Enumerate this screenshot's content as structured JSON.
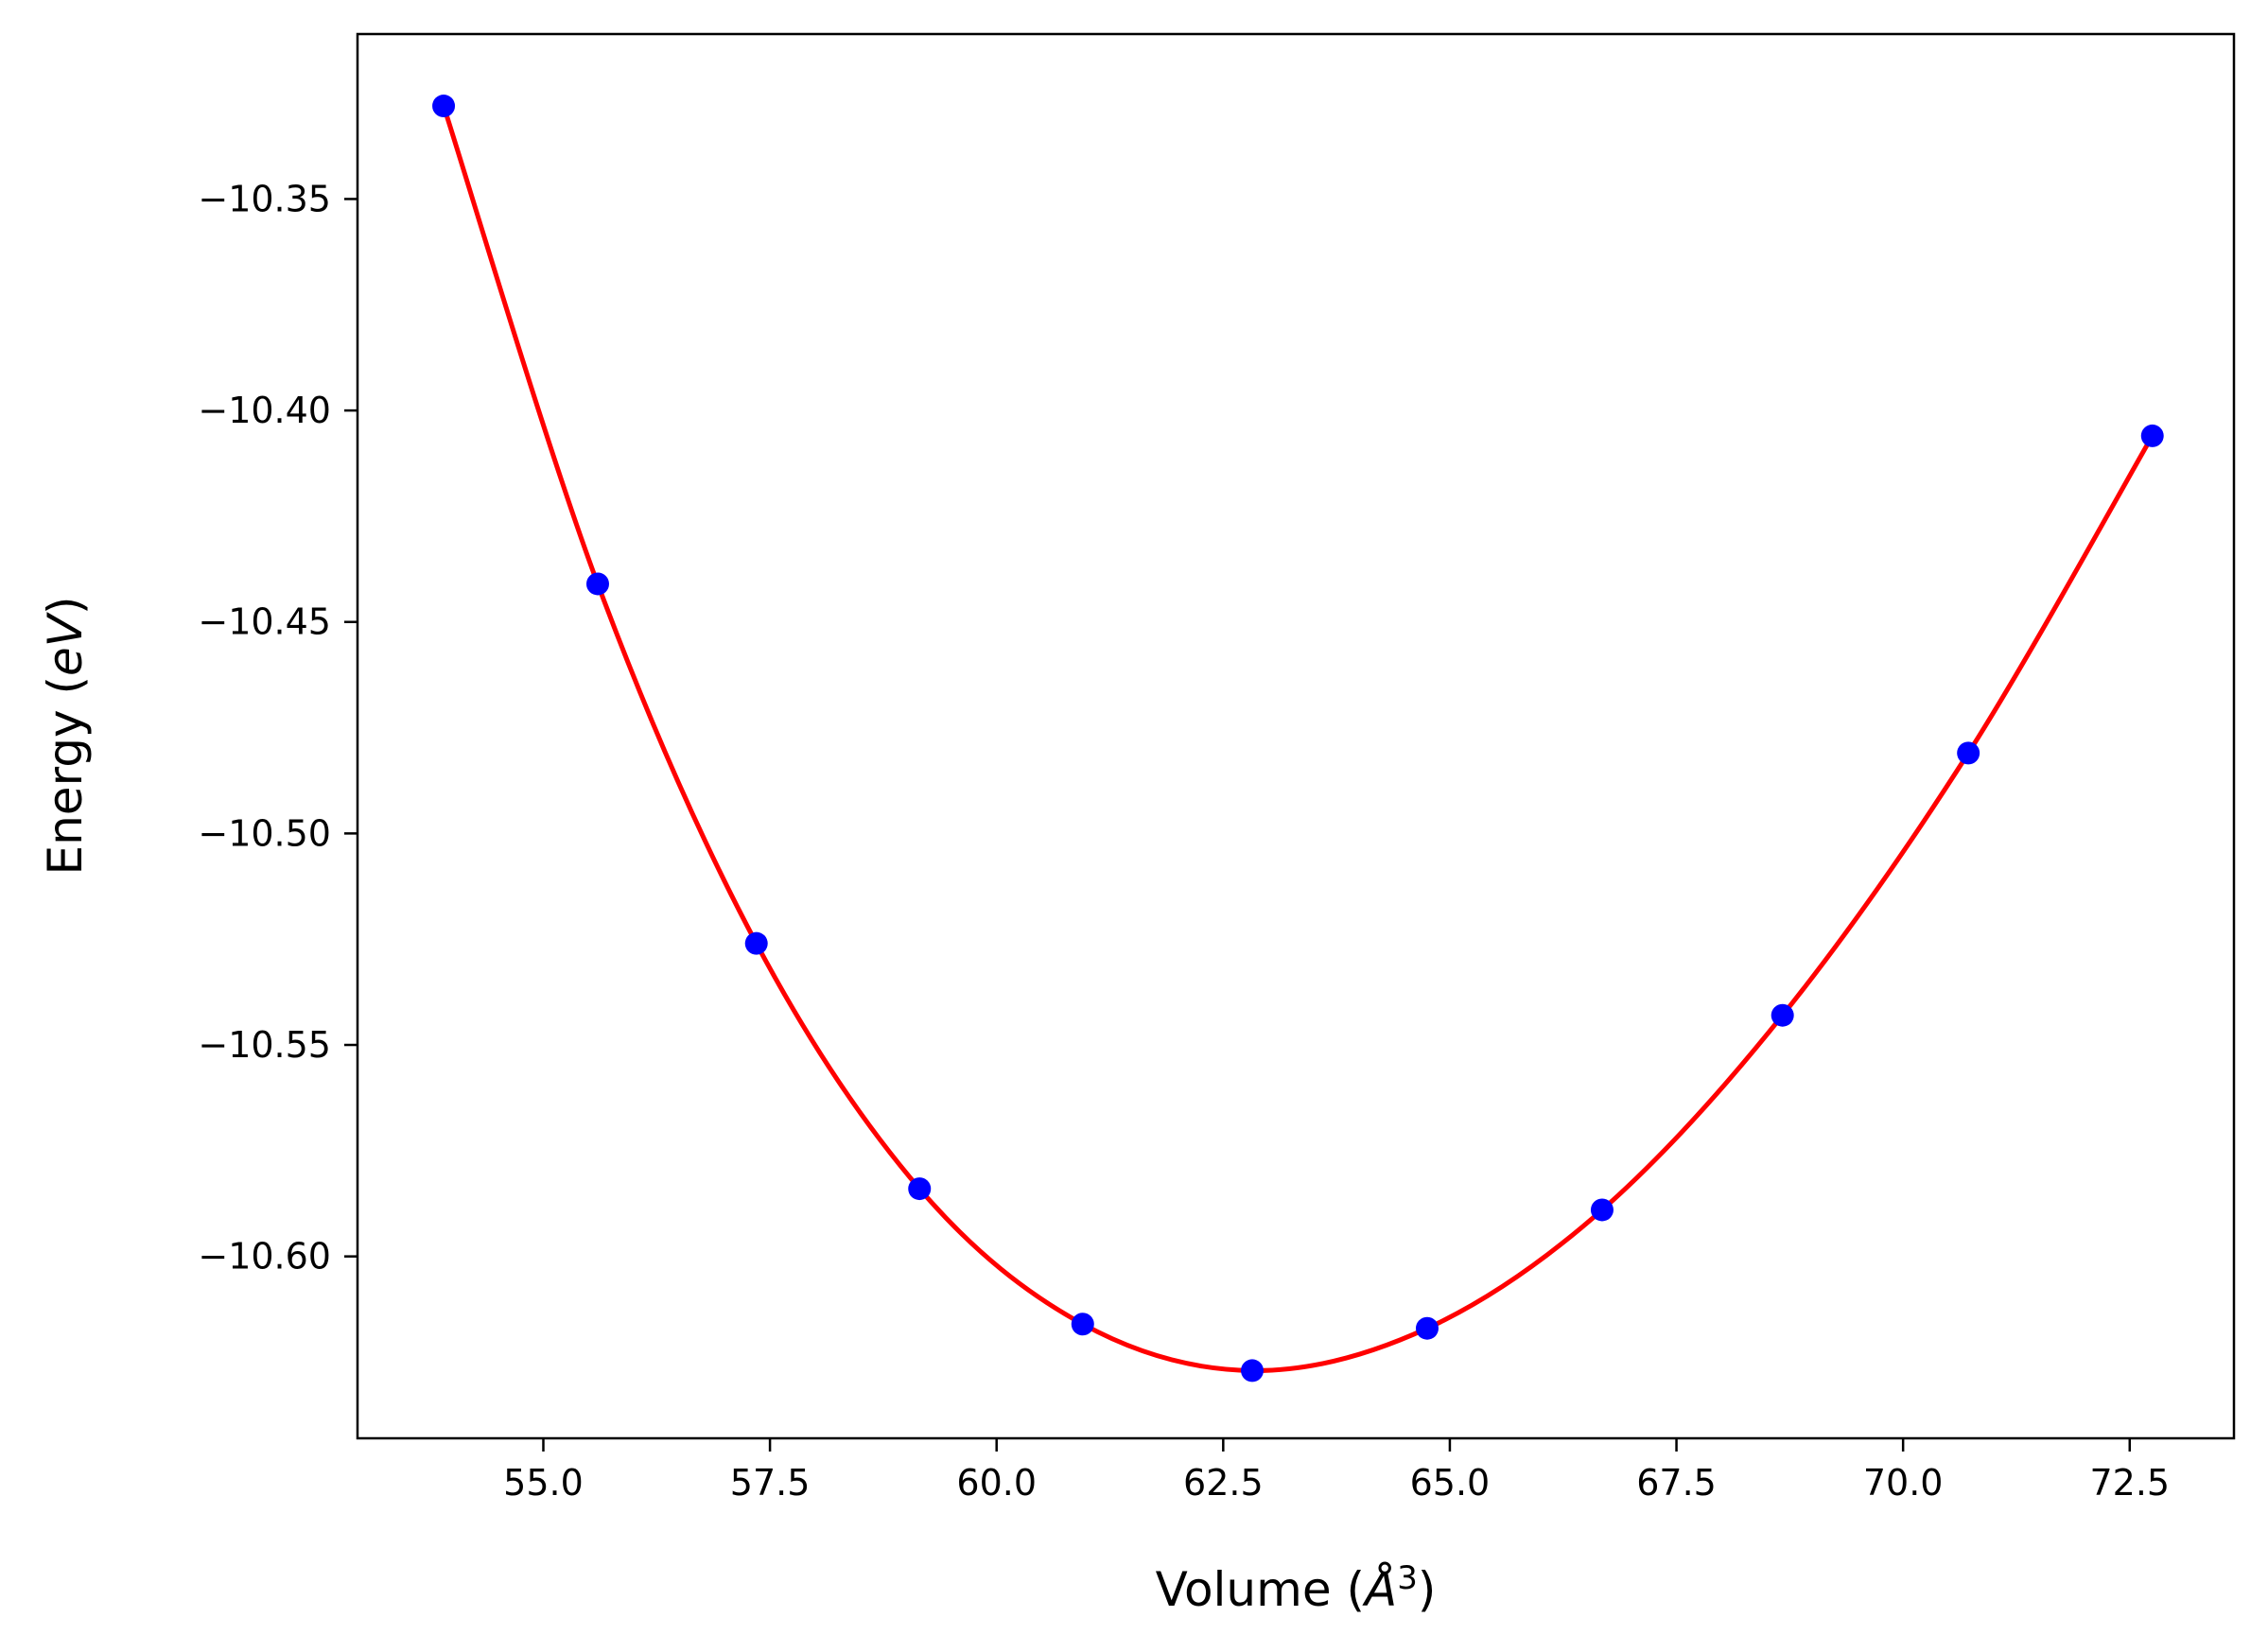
{
  "chart_data": {
    "type": "scatter",
    "title": "",
    "xlabel_prefix": "Volume (",
    "xlabel_unit": "Å",
    "xlabel_exp": "3",
    "xlabel_suffix": ")",
    "ylabel_prefix": "Energy (",
    "ylabel_unit": "eV",
    "ylabel_suffix": ")",
    "xlim": [
      52.95,
      73.65
    ],
    "ylim": [
      -10.643,
      -10.311
    ],
    "x_ticks": [
      55.0,
      57.5,
      60.0,
      62.5,
      65.0,
      67.5,
      70.0,
      72.5
    ],
    "x_tick_labels": [
      "55.0",
      "57.5",
      "60.0",
      "62.5",
      "65.0",
      "67.5",
      "70.0",
      "72.5"
    ],
    "y_ticks": [
      -10.35,
      -10.4,
      -10.45,
      -10.5,
      -10.55,
      -10.6
    ],
    "y_tick_labels": [
      "−10.35",
      "−10.40",
      "−10.45",
      "−10.50",
      "−10.55",
      "−10.60"
    ],
    "grid": false,
    "legend": "none",
    "series": [
      {
        "kind": "points",
        "color": "#0000ff",
        "x": [
          53.9,
          55.6,
          57.35,
          59.15,
          60.95,
          62.82,
          64.75,
          66.68,
          68.67,
          70.72,
          72.75
        ],
        "y": [
          -10.328,
          -10.441,
          -10.526,
          -10.584,
          -10.616,
          -10.627,
          -10.617,
          -10.589,
          -10.543,
          -10.481,
          -10.406
        ]
      },
      {
        "kind": "fit-curve",
        "color": "#ff0000",
        "x": [
          53.9,
          55.6,
          57.35,
          59.15,
          60.95,
          62.82,
          64.75,
          66.68,
          68.67,
          70.72,
          72.75
        ],
        "y": [
          -10.328,
          -10.441,
          -10.526,
          -10.584,
          -10.616,
          -10.627,
          -10.617,
          -10.589,
          -10.543,
          -10.481,
          -10.406
        ]
      }
    ]
  }
}
